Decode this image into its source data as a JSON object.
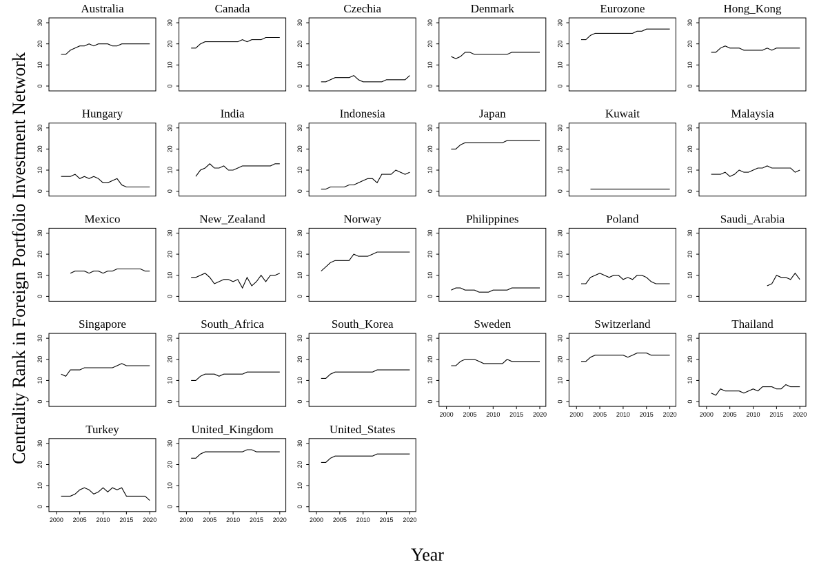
{
  "chart_data": {
    "type": "line",
    "y_label": "Centrality Rank in Foreign Portfolio Investment Network",
    "x_label": "Year",
    "color": "#000000",
    "x": [
      2001,
      2002,
      2003,
      2004,
      2005,
      2006,
      2007,
      2008,
      2009,
      2010,
      2011,
      2012,
      2013,
      2014,
      2015,
      2016,
      2017,
      2018,
      2019,
      2020
    ],
    "xlim": [
      1998.4,
      2021.3
    ],
    "xticks": [
      2000,
      2005,
      2010,
      2015,
      2020
    ],
    "ylim": [
      -2.3,
      32.3
    ],
    "yticks": [
      0,
      10,
      20,
      30
    ],
    "panels": [
      {
        "title": "Australia",
        "values": [
          15,
          15,
          17,
          18,
          19,
          19,
          20,
          19,
          20,
          20,
          20,
          19,
          19,
          20,
          20,
          20,
          20,
          20,
          20,
          20
        ]
      },
      {
        "title": "Canada",
        "values": [
          18,
          18,
          20,
          21,
          21,
          21,
          21,
          21,
          21,
          21,
          21,
          22,
          21,
          22,
          22,
          22,
          23,
          23,
          23,
          23
        ]
      },
      {
        "title": "Czechia",
        "values": [
          2,
          2,
          3,
          4,
          4,
          4,
          4,
          5,
          3,
          2,
          2,
          2,
          2,
          2,
          3,
          3,
          3,
          3,
          3,
          5
        ]
      },
      {
        "title": "Denmark",
        "values": [
          14,
          13,
          14,
          16,
          16,
          15,
          15,
          15,
          15,
          15,
          15,
          15,
          15,
          16,
          16,
          16,
          16,
          16,
          16,
          16
        ]
      },
      {
        "title": "Eurozone",
        "values": [
          22,
          22,
          24,
          25,
          25,
          25,
          25,
          25,
          25,
          25,
          25,
          25,
          26,
          26,
          27,
          27,
          27,
          27,
          27,
          27
        ]
      },
      {
        "title": "Hong_Kong",
        "values": [
          16,
          16,
          18,
          19,
          18,
          18,
          18,
          17,
          17,
          17,
          17,
          17,
          18,
          17,
          18,
          18,
          18,
          18,
          18,
          18
        ]
      },
      {
        "title": "Hungary",
        "values": [
          7,
          7,
          7,
          8,
          6,
          7,
          6,
          7,
          6,
          4,
          4,
          5,
          6,
          3,
          2,
          2,
          2,
          2,
          2,
          2
        ]
      },
      {
        "title": "India",
        "values": [
          null,
          7,
          10,
          11,
          13,
          11,
          11,
          12,
          10,
          10,
          11,
          12,
          12,
          12,
          12,
          12,
          12,
          12,
          13,
          13
        ]
      },
      {
        "title": "Indonesia",
        "values": [
          1,
          1,
          2,
          2,
          2,
          2,
          3,
          3,
          4,
          5,
          6,
          6,
          4,
          8,
          8,
          8,
          10,
          9,
          8,
          9
        ]
      },
      {
        "title": "Japan",
        "values": [
          20,
          20,
          22,
          23,
          23,
          23,
          23,
          23,
          23,
          23,
          23,
          23,
          24,
          24,
          24,
          24,
          24,
          24,
          24,
          24
        ]
      },
      {
        "title": "Kuwait",
        "values": [
          null,
          null,
          1,
          1,
          1,
          1,
          1,
          1,
          1,
          1,
          1,
          1,
          1,
          1,
          1,
          1,
          1,
          1,
          1,
          1
        ]
      },
      {
        "title": "Malaysia",
        "values": [
          8,
          8,
          8,
          9,
          7,
          8,
          10,
          9,
          9,
          10,
          11,
          11,
          12,
          11,
          11,
          11,
          11,
          11,
          9,
          10
        ]
      },
      {
        "title": "Mexico",
        "values": [
          null,
          null,
          11,
          12,
          12,
          12,
          11,
          12,
          12,
          11,
          12,
          12,
          13,
          13,
          13,
          13,
          13,
          13,
          12,
          12
        ]
      },
      {
        "title": "New_Zealand",
        "values": [
          9,
          9,
          10,
          11,
          9,
          6,
          7,
          8,
          8,
          7,
          8,
          4,
          9,
          5,
          7,
          10,
          7,
          10,
          10,
          11
        ]
      },
      {
        "title": "Norway",
        "values": [
          12,
          14,
          16,
          17,
          17,
          17,
          17,
          20,
          19,
          19,
          19,
          20,
          21,
          21,
          21,
          21,
          21,
          21,
          21,
          21
        ]
      },
      {
        "title": "Philippines",
        "values": [
          3,
          4,
          4,
          3,
          3,
          3,
          2,
          2,
          2,
          3,
          3,
          3,
          3,
          4,
          4,
          4,
          4,
          4,
          4,
          4
        ]
      },
      {
        "title": "Poland",
        "values": [
          6,
          6,
          9,
          10,
          11,
          10,
          9,
          10,
          10,
          8,
          9,
          8,
          10,
          10,
          9,
          7,
          6,
          6,
          6,
          6
        ]
      },
      {
        "title": "Saudi_Arabia",
        "values": [
          null,
          null,
          null,
          null,
          null,
          null,
          null,
          null,
          null,
          null,
          null,
          null,
          5,
          6,
          10,
          9,
          9,
          8,
          11,
          8
        ]
      },
      {
        "title": "Singapore",
        "values": [
          13,
          12,
          15,
          15,
          15,
          16,
          16,
          16,
          16,
          16,
          16,
          16,
          17,
          18,
          17,
          17,
          17,
          17,
          17,
          17
        ]
      },
      {
        "title": "South_Africa",
        "values": [
          10,
          10,
          12,
          13,
          13,
          13,
          12,
          13,
          13,
          13,
          13,
          13,
          14,
          14,
          14,
          14,
          14,
          14,
          14,
          14
        ]
      },
      {
        "title": "South_Korea",
        "values": [
          11,
          11,
          13,
          14,
          14,
          14,
          14,
          14,
          14,
          14,
          14,
          14,
          15,
          15,
          15,
          15,
          15,
          15,
          15,
          15
        ]
      },
      {
        "title": "Sweden",
        "values": [
          17,
          17,
          19,
          20,
          20,
          20,
          19,
          18,
          18,
          18,
          18,
          18,
          20,
          19,
          19,
          19,
          19,
          19,
          19,
          19
        ]
      },
      {
        "title": "Switzerland",
        "values": [
          19,
          19,
          21,
          22,
          22,
          22,
          22,
          22,
          22,
          22,
          21,
          22,
          23,
          23,
          23,
          22,
          22,
          22,
          22,
          22
        ]
      },
      {
        "title": "Thailand",
        "values": [
          4,
          3,
          6,
          5,
          5,
          5,
          5,
          4,
          5,
          6,
          5,
          7,
          7,
          7,
          6,
          6,
          8,
          7,
          7,
          7
        ]
      },
      {
        "title": "Turkey",
        "values": [
          5,
          5,
          5,
          6,
          8,
          9,
          8,
          6,
          7,
          9,
          7,
          9,
          8,
          9,
          5,
          5,
          5,
          5,
          5,
          3
        ]
      },
      {
        "title": "United_Kingdom",
        "values": [
          23,
          23,
          25,
          26,
          26,
          26,
          26,
          26,
          26,
          26,
          26,
          26,
          27,
          27,
          26,
          26,
          26,
          26,
          26,
          26
        ]
      },
      {
        "title": "United_States",
        "values": [
          21,
          21,
          23,
          24,
          24,
          24,
          24,
          24,
          24,
          24,
          24,
          24,
          25,
          25,
          25,
          25,
          25,
          25,
          25,
          25
        ]
      }
    ]
  }
}
